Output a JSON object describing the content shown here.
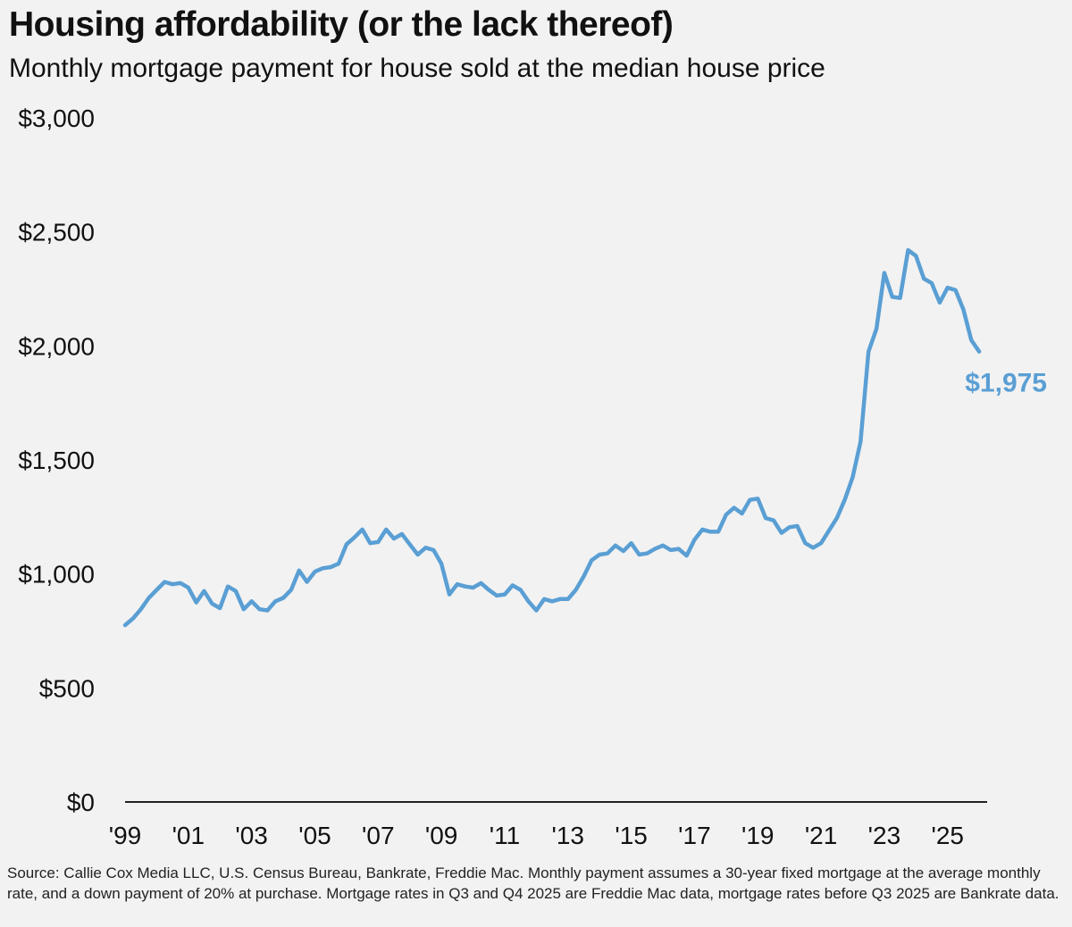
{
  "title": "Housing affordability (or the lack thereof)",
  "subtitle": "Monthly mortgage payment for house sold at the median house price",
  "source": "Source: Callie Cox Media LLC, U.S. Census Bureau, Bankrate, Freddie Mac. Monthly payment assumes a 30-year fixed mortgage at the average monthly rate, and a down payment of 20% at purchase. Mortgage rates in Q3 and Q4 2025 are Freddie Mac data, mortgage rates before Q3 2025 are Bankrate data.",
  "colors": {
    "line": "#5a9fd4",
    "axis": "#222222",
    "text": "#111111"
  },
  "chart_data": {
    "type": "line",
    "title": "Housing affordability (or the lack thereof)",
    "subtitle": "Monthly mortgage payment for house sold at the median house price",
    "xlabel": "",
    "ylabel": "",
    "grid": false,
    "ylim": [
      0,
      3000
    ],
    "xlim": [
      1999.0,
      2026.25
    ],
    "yticks": [
      0,
      500,
      1000,
      1500,
      2000,
      2500,
      3000
    ],
    "ytick_labels": [
      "$0",
      "$500",
      "$1,000",
      "$1,500",
      "$2,000",
      "$2,500",
      "$3,000"
    ],
    "xticks": [
      1999,
      2001,
      2003,
      2005,
      2007,
      2009,
      2011,
      2013,
      2015,
      2017,
      2019,
      2021,
      2023,
      2025
    ],
    "xtick_labels": [
      "'99",
      "'01",
      "'03",
      "'05",
      "'07",
      "'09",
      "'11",
      "'13",
      "'15",
      "'17",
      "'19",
      "'21",
      "'23",
      "'25"
    ],
    "end_label": "$1,975",
    "series": [
      {
        "name": "Monthly mortgage payment",
        "x": [
          1999.0,
          1999.25,
          1999.5,
          1999.75,
          2000.0,
          2000.25,
          2000.5,
          2000.75,
          2001.0,
          2001.25,
          2001.5,
          2001.75,
          2002.0,
          2002.25,
          2002.5,
          2002.75,
          2003.0,
          2003.25,
          2003.5,
          2003.75,
          2004.0,
          2004.25,
          2004.5,
          2004.75,
          2005.0,
          2005.25,
          2005.5,
          2005.75,
          2006.0,
          2006.25,
          2006.5,
          2006.75,
          2007.0,
          2007.25,
          2007.5,
          2007.75,
          2008.0,
          2008.25,
          2008.5,
          2008.75,
          2009.0,
          2009.25,
          2009.5,
          2009.75,
          2010.0,
          2010.25,
          2010.5,
          2010.75,
          2011.0,
          2011.25,
          2011.5,
          2011.75,
          2012.0,
          2012.25,
          2012.5,
          2012.75,
          2013.0,
          2013.25,
          2013.5,
          2013.75,
          2014.0,
          2014.25,
          2014.5,
          2014.75,
          2015.0,
          2015.25,
          2015.5,
          2015.75,
          2016.0,
          2016.25,
          2016.5,
          2016.75,
          2017.0,
          2017.25,
          2017.5,
          2017.75,
          2018.0,
          2018.25,
          2018.5,
          2018.75,
          2019.0,
          2019.25,
          2019.5,
          2019.75,
          2020.0,
          2020.25,
          2020.5,
          2020.75,
          2021.0,
          2021.25,
          2021.5,
          2021.75,
          2022.0,
          2022.25,
          2022.5,
          2022.75,
          2023.0,
          2023.25,
          2023.5,
          2023.75,
          2024.0,
          2024.25,
          2024.5,
          2024.75,
          2025.0,
          2025.25,
          2025.5,
          2025.75,
          2026.0
        ],
        "values": [
          775,
          805,
          845,
          895,
          930,
          965,
          955,
          960,
          940,
          875,
          925,
          870,
          850,
          945,
          925,
          845,
          880,
          845,
          840,
          880,
          895,
          930,
          1015,
          965,
          1010,
          1025,
          1030,
          1045,
          1130,
          1160,
          1195,
          1135,
          1140,
          1195,
          1155,
          1175,
          1130,
          1085,
          1115,
          1105,
          1045,
          910,
          955,
          945,
          940,
          960,
          930,
          905,
          910,
          950,
          930,
          880,
          840,
          890,
          880,
          890,
          890,
          930,
          990,
          1060,
          1085,
          1090,
          1125,
          1100,
          1135,
          1085,
          1090,
          1110,
          1125,
          1105,
          1110,
          1080,
          1150,
          1195,
          1185,
          1185,
          1260,
          1290,
          1265,
          1325,
          1330,
          1245,
          1235,
          1180,
          1205,
          1210,
          1135,
          1115,
          1135,
          1190,
          1245,
          1325,
          1425,
          1580,
          1975,
          2075,
          2320,
          2215,
          2210,
          2420,
          2395,
          2295,
          2275,
          2190,
          2255,
          2245,
          2160,
          2025,
          1975
        ]
      }
    ]
  }
}
